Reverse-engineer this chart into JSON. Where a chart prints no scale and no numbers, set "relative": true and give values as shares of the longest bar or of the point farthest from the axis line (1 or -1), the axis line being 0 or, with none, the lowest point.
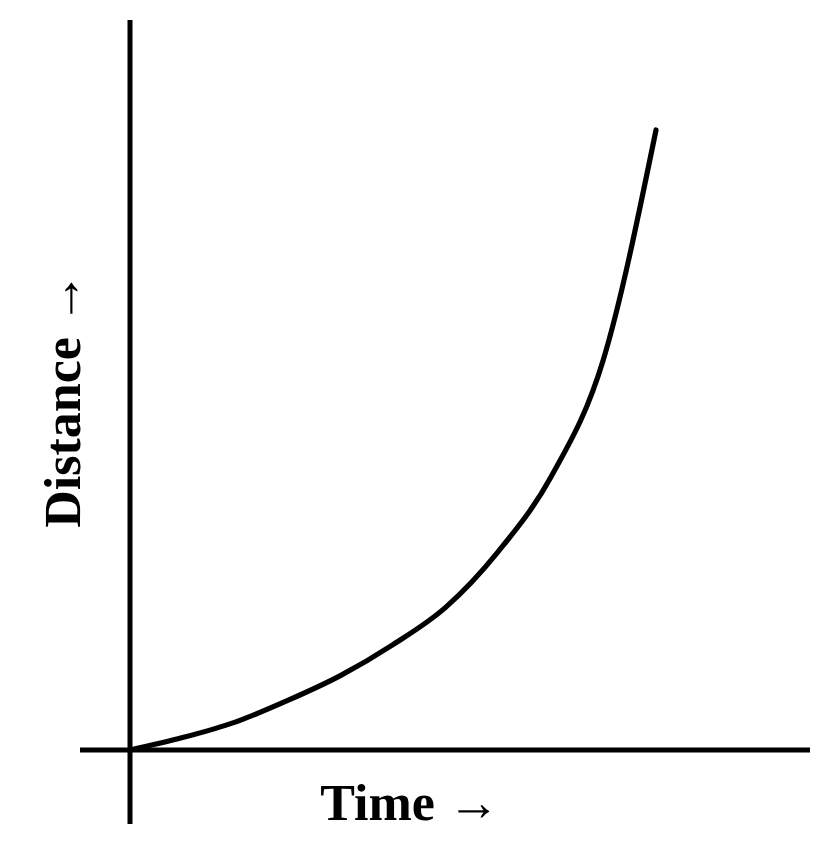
{
  "chart_data": {
    "type": "line",
    "relative": true,
    "xlabel": "Time →",
    "ylabel": "Distance →",
    "categories": [
      null,
      null,
      null,
      null,
      null,
      null,
      null,
      null,
      null,
      null,
      null
    ],
    "series": [
      {
        "color": "#000000",
        "values": [
          0,
          0.02,
          0.045,
          0.08,
          0.12,
          0.17,
          0.23,
          0.32,
          0.44,
          0.63,
          1
        ]
      }
    ]
  }
}
